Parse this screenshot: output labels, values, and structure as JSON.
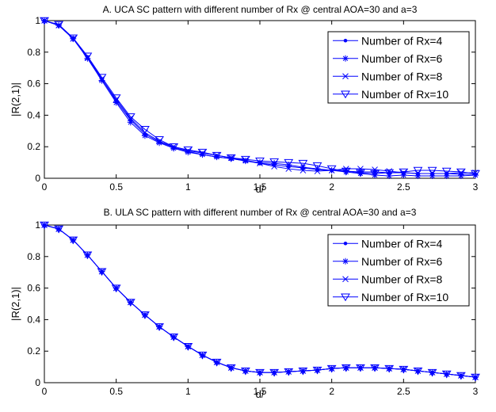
{
  "chart_data": [
    {
      "type": "line",
      "title": "A. UCA SC pattern with different number of Rx @ central AOA=30 and a=3",
      "xlabel": "d/",
      "ylabel": "|R(2,1)|",
      "xlim": [
        0,
        3
      ],
      "ylim": [
        0,
        1
      ],
      "xticks": [
        "0",
        "0.5",
        "1",
        "1.5",
        "2",
        "2.5",
        "3"
      ],
      "yticks": [
        "0",
        "0.2",
        "0.4",
        "0.6",
        "0.8",
        "1"
      ],
      "grid": false,
      "legend_position": "top-right",
      "line_color": "#0000ff",
      "x": [
        0,
        0.1,
        0.2,
        0.3,
        0.4,
        0.5,
        0.6,
        0.7,
        0.8,
        0.9,
        1.0,
        1.1,
        1.2,
        1.3,
        1.4,
        1.5,
        1.6,
        1.7,
        1.8,
        1.9,
        2.0,
        2.1,
        2.2,
        2.3,
        2.4,
        2.5,
        2.6,
        2.7,
        2.8,
        2.9,
        3.0
      ],
      "series": [
        {
          "name": "Number of Rx=4",
          "marker": "dot",
          "values": [
            1.0,
            0.97,
            0.89,
            0.77,
            0.63,
            0.49,
            0.37,
            0.28,
            0.23,
            0.195,
            0.17,
            0.15,
            0.135,
            0.125,
            0.11,
            0.095,
            0.085,
            0.075,
            0.065,
            0.055,
            0.05,
            0.045,
            0.04,
            0.04,
            0.035,
            0.035,
            0.03,
            0.03,
            0.03,
            0.025,
            0.025
          ]
        },
        {
          "name": "Number of Rx=6",
          "marker": "star",
          "values": [
            1.0,
            0.97,
            0.885,
            0.76,
            0.62,
            0.48,
            0.355,
            0.27,
            0.225,
            0.19,
            0.165,
            0.15,
            0.135,
            0.125,
            0.11,
            0.1,
            0.095,
            0.085,
            0.07,
            0.06,
            0.05,
            0.04,
            0.03,
            0.02,
            0.015,
            0.02,
            0.015,
            0.015,
            0.015,
            0.015,
            0.02
          ]
        },
        {
          "name": "Number of Rx=8",
          "marker": "x",
          "values": [
            1.0,
            0.97,
            0.885,
            0.765,
            0.63,
            0.5,
            0.38,
            0.29,
            0.235,
            0.2,
            0.175,
            0.16,
            0.145,
            0.13,
            0.115,
            0.095,
            0.075,
            0.06,
            0.05,
            0.045,
            0.05,
            0.06,
            0.06,
            0.055,
            0.045,
            0.035,
            0.03,
            0.03,
            0.03,
            0.035,
            0.035
          ]
        },
        {
          "name": "Number of Rx=10",
          "marker": "triangle-down",
          "values": [
            1.0,
            0.975,
            0.89,
            0.775,
            0.64,
            0.51,
            0.39,
            0.31,
            0.245,
            0.2,
            0.18,
            0.165,
            0.145,
            0.13,
            0.12,
            0.11,
            0.105,
            0.1,
            0.095,
            0.08,
            0.06,
            0.045,
            0.035,
            0.03,
            0.035,
            0.04,
            0.05,
            0.05,
            0.045,
            0.04,
            0.03
          ]
        }
      ]
    },
    {
      "type": "line",
      "title": "B. ULA SC pattern with different number of Rx @ central AOA=30 and a=3",
      "xlabel": "d/",
      "ylabel": "|R(2,1)|",
      "xlim": [
        0,
        3
      ],
      "ylim": [
        0,
        1
      ],
      "xticks": [
        "0",
        "0.5",
        "1",
        "1.5",
        "2",
        "2.5",
        "3"
      ],
      "yticks": [
        "0",
        "0.2",
        "0.4",
        "0.6",
        "0.8",
        "1"
      ],
      "grid": false,
      "legend_position": "top-right",
      "line_color": "#0000ff",
      "x": [
        0,
        0.1,
        0.2,
        0.3,
        0.4,
        0.5,
        0.6,
        0.7,
        0.8,
        0.9,
        1.0,
        1.1,
        1.2,
        1.3,
        1.4,
        1.5,
        1.6,
        1.7,
        1.8,
        1.9,
        2.0,
        2.1,
        2.2,
        2.3,
        2.4,
        2.5,
        2.6,
        2.7,
        2.8,
        2.9,
        3.0
      ],
      "series": [
        {
          "name": "Number of Rx=4",
          "marker": "dot",
          "values": [
            1.0,
            0.975,
            0.905,
            0.81,
            0.705,
            0.6,
            0.51,
            0.43,
            0.355,
            0.29,
            0.23,
            0.175,
            0.13,
            0.095,
            0.075,
            0.065,
            0.065,
            0.07,
            0.075,
            0.08,
            0.09,
            0.095,
            0.095,
            0.095,
            0.09,
            0.085,
            0.075,
            0.065,
            0.055,
            0.045,
            0.035
          ]
        },
        {
          "name": "Number of Rx=6",
          "marker": "star",
          "values": [
            1.0,
            0.975,
            0.905,
            0.81,
            0.705,
            0.6,
            0.51,
            0.43,
            0.355,
            0.29,
            0.23,
            0.175,
            0.13,
            0.095,
            0.075,
            0.065,
            0.065,
            0.07,
            0.075,
            0.08,
            0.09,
            0.095,
            0.095,
            0.095,
            0.09,
            0.085,
            0.075,
            0.065,
            0.055,
            0.045,
            0.035
          ]
        },
        {
          "name": "Number of Rx=8",
          "marker": "x",
          "values": [
            1.0,
            0.975,
            0.905,
            0.81,
            0.705,
            0.6,
            0.51,
            0.43,
            0.355,
            0.29,
            0.23,
            0.175,
            0.13,
            0.095,
            0.075,
            0.065,
            0.065,
            0.07,
            0.075,
            0.08,
            0.09,
            0.095,
            0.095,
            0.095,
            0.09,
            0.085,
            0.075,
            0.065,
            0.055,
            0.045,
            0.035
          ]
        },
        {
          "name": "Number of Rx=10",
          "marker": "triangle-down",
          "values": [
            1.0,
            0.975,
            0.905,
            0.81,
            0.705,
            0.6,
            0.51,
            0.43,
            0.355,
            0.29,
            0.23,
            0.175,
            0.13,
            0.095,
            0.075,
            0.065,
            0.065,
            0.07,
            0.075,
            0.08,
            0.09,
            0.095,
            0.095,
            0.095,
            0.09,
            0.085,
            0.075,
            0.065,
            0.055,
            0.045,
            0.035
          ]
        }
      ]
    }
  ]
}
